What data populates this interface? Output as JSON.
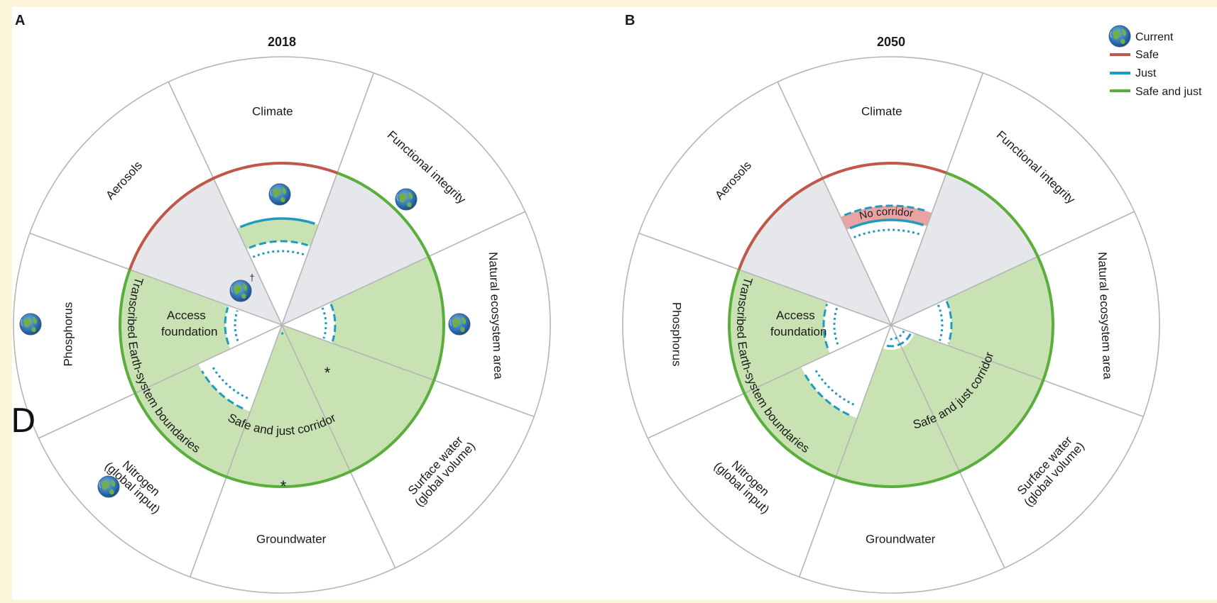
{
  "stray_glyph": "D",
  "legend": {
    "items": [
      {
        "label": "Current",
        "kind": "globe"
      },
      {
        "label": "Safe",
        "color": "#c0574a"
      },
      {
        "label": "Just",
        "color": "#1f9bbf"
      },
      {
        "label": "Safe and just",
        "color": "#5aae3c"
      }
    ]
  },
  "colors": {
    "safe": "#c0574a",
    "just": "#1f9bbf",
    "safe_and_just": "#5aae3c",
    "corridor_fill": "#c9e2b4",
    "grey_fill": "#e6e7ea",
    "no_corridor_fill": "#eaa3a3",
    "spoke": "#b5b5b5"
  },
  "panels": [
    {
      "letter": "A",
      "year": "2018",
      "sectors": [
        "Climate",
        "Functional integrity",
        "Natural ecosystem area",
        "Surface water (global volume)",
        "Groundwater",
        "Nitrogen (global input)",
        "Phosphorus",
        "Aerosols"
      ],
      "sector_lines": [
        [
          "Climate"
        ],
        [
          "Functional integrity"
        ],
        [
          "Natural ecosystem area"
        ],
        [
          "Surface water",
          "(global volume)"
        ],
        [
          "Groundwater"
        ],
        [
          "Nitrogen",
          "(global input)"
        ],
        [
          "Phosphorus"
        ],
        [
          "Aerosols"
        ]
      ],
      "access_foundation": [
        "Access",
        "foundation"
      ],
      "corridor_label": "Safe and just corridor",
      "transcribed_label": "Transcribed Earth-system boundaries",
      "annotations": [
        "*",
        "*",
        "†"
      ]
    },
    {
      "letter": "B",
      "year": "2050",
      "sectors": [
        "Climate",
        "Functional integrity",
        "Natural ecosystem area",
        "Surface water (global volume)",
        "Groundwater",
        "Nitrogen (global input)",
        "Phosphorus",
        "Aerosols"
      ],
      "sector_lines": [
        [
          "Climate"
        ],
        [
          "Functional integrity"
        ],
        [
          "Natural ecosystem area"
        ],
        [
          "Surface water",
          "(global volume)"
        ],
        [
          "Groundwater"
        ],
        [
          "Nitrogen",
          "(global input)"
        ],
        [
          "Phosphorus"
        ],
        [
          "Aerosols"
        ]
      ],
      "access_foundation": [
        "Access",
        "foundation"
      ],
      "corridor_label": "Safe and just corridor",
      "transcribed_label": "Transcribed Earth-system boundaries",
      "no_corridor_label": "No corridor"
    }
  ]
}
